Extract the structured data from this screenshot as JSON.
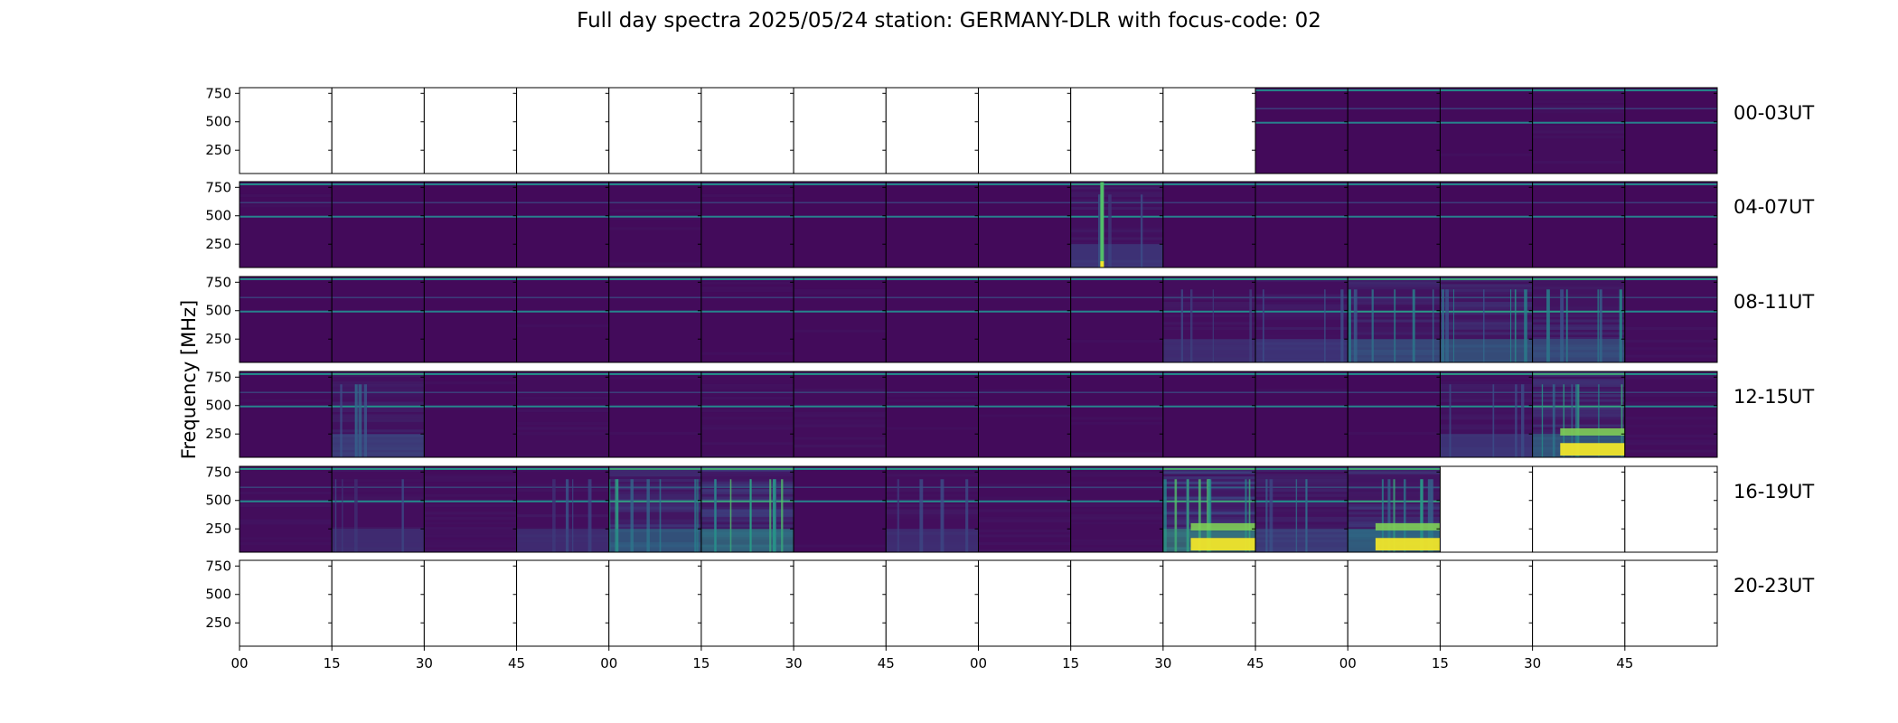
{
  "title": "Full day spectra 2025/05/24 station: GERMANY-DLR with focus-code: 02",
  "chart_data": {
    "type": "heatmap",
    "title": "Full day spectra 2025/05/24 station: GERMANY-DLR with focus-code: 02",
    "ylabel": "Frequency [MHz]",
    "y_ticks": [
      "750",
      "500",
      "250"
    ],
    "x_ticks": [
      "00",
      "15",
      "30",
      "45",
      "00",
      "15",
      "30",
      "45",
      "00",
      "15",
      "30",
      "45",
      "00",
      "15",
      "30",
      "45"
    ],
    "colormap": "viridis",
    "rows": [
      {
        "label": "00-03UT",
        "panels": [
          {
            "data": false
          },
          {
            "data": false
          },
          {
            "data": false
          },
          {
            "data": false
          },
          {
            "data": false
          },
          {
            "data": false
          },
          {
            "data": false
          },
          {
            "data": false
          },
          {
            "data": false
          },
          {
            "data": false
          },
          {
            "data": false
          },
          {
            "data": true,
            "activity": 0.1
          },
          {
            "data": true,
            "activity": 0.1
          },
          {
            "data": true,
            "activity": 0.15
          },
          {
            "data": true,
            "activity": 0.2
          },
          {
            "data": true,
            "activity": 0.1
          }
        ]
      },
      {
        "label": "04-07UT",
        "panels": [
          {
            "data": true,
            "activity": 0.15
          },
          {
            "data": true,
            "activity": 0.1
          },
          {
            "data": true,
            "activity": 0.05
          },
          {
            "data": true,
            "activity": 0.1
          },
          {
            "data": true,
            "activity": 0.15
          },
          {
            "data": true,
            "activity": 0.15
          },
          {
            "data": true,
            "activity": 0.1
          },
          {
            "data": true,
            "activity": 0.1
          },
          {
            "data": true,
            "activity": 0.1
          },
          {
            "data": true,
            "activity": 0.3,
            "burst": "spike"
          },
          {
            "data": true,
            "activity": 0.1
          },
          {
            "data": true,
            "activity": 0.1
          },
          {
            "data": true,
            "activity": 0.1
          },
          {
            "data": true,
            "activity": 0.1
          },
          {
            "data": true,
            "activity": 0.1
          },
          {
            "data": true,
            "activity": 0.1
          }
        ]
      },
      {
        "label": "08-11UT",
        "panels": [
          {
            "data": true,
            "activity": 0.1
          },
          {
            "data": true,
            "activity": 0.15
          },
          {
            "data": true,
            "activity": 0.1
          },
          {
            "data": true,
            "activity": 0.15
          },
          {
            "data": true,
            "activity": 0.15
          },
          {
            "data": true,
            "activity": 0.15
          },
          {
            "data": true,
            "activity": 0.15
          },
          {
            "data": true,
            "activity": 0.15
          },
          {
            "data": true,
            "activity": 0.15
          },
          {
            "data": true,
            "activity": 0.15
          },
          {
            "data": true,
            "activity": 0.25
          },
          {
            "data": true,
            "activity": 0.3
          },
          {
            "data": true,
            "activity": 0.45
          },
          {
            "data": true,
            "activity": 0.5
          },
          {
            "data": true,
            "activity": 0.45
          },
          {
            "data": true,
            "activity": 0.2
          }
        ]
      },
      {
        "label": "12-15UT",
        "panels": [
          {
            "data": true,
            "activity": 0.15
          },
          {
            "data": true,
            "activity": 0.35
          },
          {
            "data": true,
            "activity": 0.15
          },
          {
            "data": true,
            "activity": 0.2
          },
          {
            "data": true,
            "activity": 0.15
          },
          {
            "data": true,
            "activity": 0.2
          },
          {
            "data": true,
            "activity": 0.2
          },
          {
            "data": true,
            "activity": 0.15
          },
          {
            "data": true,
            "activity": 0.15
          },
          {
            "data": true,
            "activity": 0.15
          },
          {
            "data": true,
            "activity": 0.15
          },
          {
            "data": true,
            "activity": 0.15
          },
          {
            "data": true,
            "activity": 0.15
          },
          {
            "data": true,
            "activity": 0.3
          },
          {
            "data": true,
            "activity": 0.55,
            "burst": "strong"
          },
          {
            "data": true,
            "activity": 0.2
          }
        ]
      },
      {
        "label": "16-19UT",
        "panels": [
          {
            "data": true,
            "activity": 0.2
          },
          {
            "data": true,
            "activity": 0.25
          },
          {
            "data": true,
            "activity": 0.2
          },
          {
            "data": true,
            "activity": 0.25
          },
          {
            "data": true,
            "activity": 0.55
          },
          {
            "data": true,
            "activity": 0.65
          },
          {
            "data": true,
            "activity": 0.15
          },
          {
            "data": true,
            "activity": 0.25
          },
          {
            "data": true,
            "activity": 0.2
          },
          {
            "data": true,
            "activity": 0.2
          },
          {
            "data": true,
            "activity": 0.7,
            "burst": "strong"
          },
          {
            "data": true,
            "activity": 0.35
          },
          {
            "data": true,
            "activity": 0.6,
            "burst": "strong"
          },
          {
            "data": false
          },
          {
            "data": false
          },
          {
            "data": false
          }
        ]
      },
      {
        "label": "20-23UT",
        "panels": [
          {
            "data": false
          },
          {
            "data": false
          },
          {
            "data": false
          },
          {
            "data": false
          },
          {
            "data": false
          },
          {
            "data": false
          },
          {
            "data": false
          },
          {
            "data": false
          },
          {
            "data": false
          },
          {
            "data": false
          },
          {
            "data": false
          },
          {
            "data": false
          },
          {
            "data": false
          },
          {
            "data": false
          },
          {
            "data": false
          },
          {
            "data": false
          }
        ]
      }
    ]
  }
}
